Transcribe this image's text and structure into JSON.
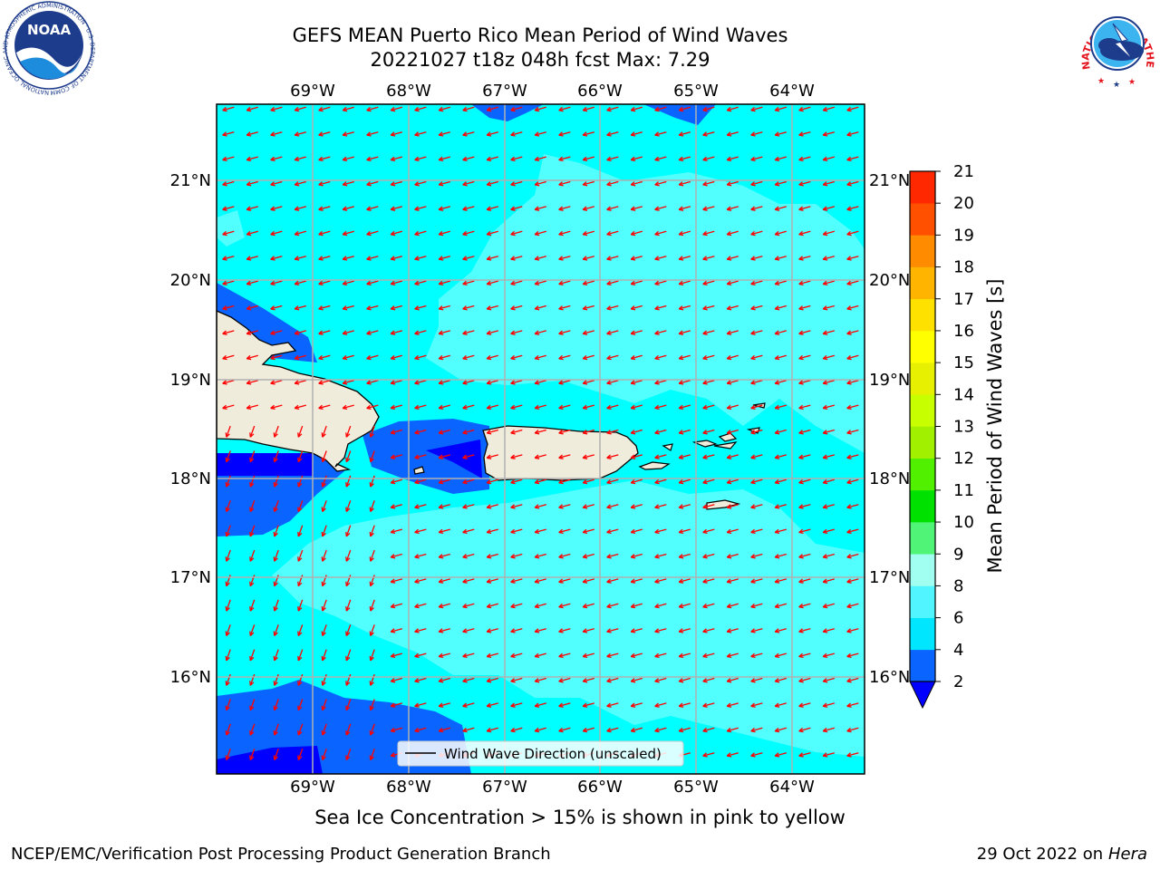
{
  "title": {
    "line1": "GEFS MEAN Puerto Rico Mean Period of Wind Waves",
    "line2": "20221027 t18z 048h fcst   Max: 7.29"
  },
  "map": {
    "lon_ticks": [
      "69°W",
      "68°W",
      "67°W",
      "66°W",
      "65°W",
      "64°W"
    ],
    "lat_ticks": [
      "21°N",
      "20°N",
      "19°N",
      "18°N",
      "17°N",
      "16°N"
    ],
    "lon_range": [
      -70.0,
      -63.25
    ],
    "lat_range": [
      15.0,
      21.75
    ],
    "gridlines": true,
    "legend_label": "Wind Wave Direction (unscaled)",
    "legend_position": "bottom-center",
    "arrow_color": "#ff0000",
    "land_color": "#efecdc",
    "wave_direction": "toward west-southwest"
  },
  "colorbar": {
    "label": "Mean Period of Wind Waves [s]",
    "ticks": [
      "2",
      "4",
      "6",
      "8",
      "9",
      "10",
      "11",
      "12",
      "13",
      "14",
      "15",
      "16",
      "17",
      "18",
      "19",
      "20",
      "21"
    ],
    "colors": [
      "#0a64ff",
      "#00e6ff",
      "#50f5ff",
      "#a0fff0",
      "#50f578",
      "#00e100",
      "#50f000",
      "#a0f000",
      "#c8ff00",
      "#e6f000",
      "#ffff00",
      "#ffe100",
      "#ffb400",
      "#ff8c00",
      "#ff5000",
      "#ff2800"
    ],
    "under_color": "#0000ff"
  },
  "caption": "Sea Ice Concentration > 15% is shown in pink to yellow",
  "footer": {
    "left": "NCEP/EMC/Verification Post Processing Product Generation Branch",
    "right_prefix": "29 Oct 2022 on ",
    "right_host": "Hera"
  },
  "logos": {
    "noaa": "NOAA",
    "noaa_ring": "NATIONAL OCEANIC AND ATMOSPHERIC ADMINISTRATION · U.S. DEPARTMENT OF COMMERCE",
    "nws_ring": "NATIONAL WEATHER SERVICE"
  }
}
